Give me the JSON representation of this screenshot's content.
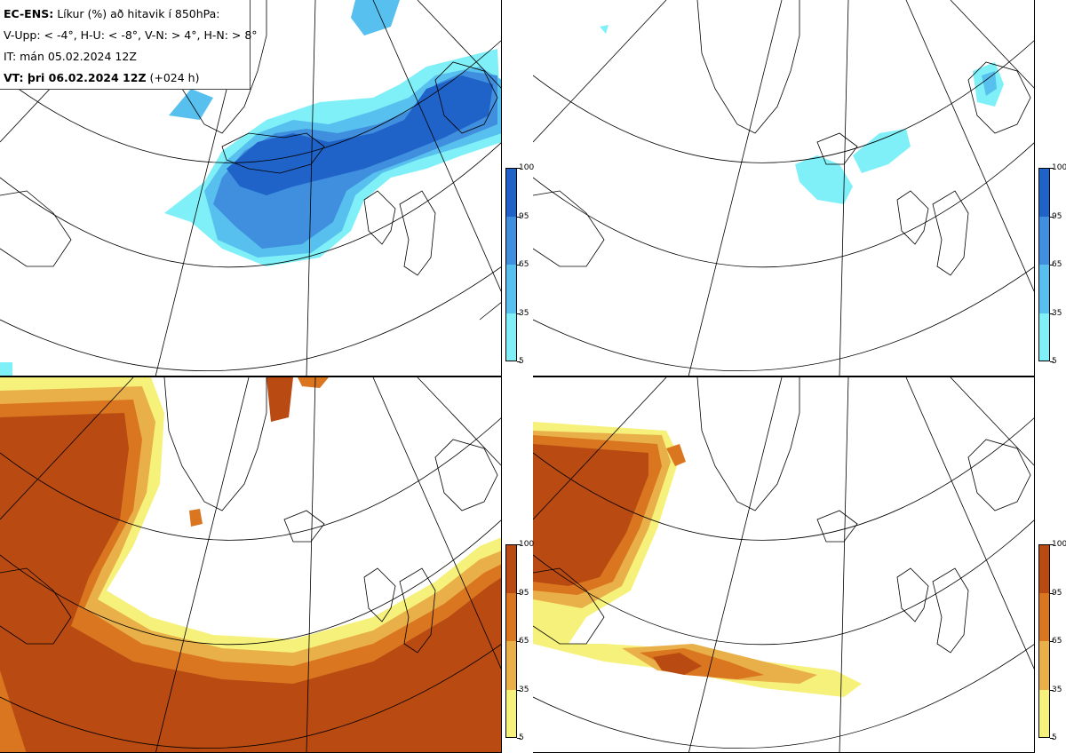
{
  "header": {
    "line1_bold": "EC-ENS:",
    "line1_rest": "Líkur (%) að hitavik í 850hPa:",
    "line2": "V-Upp: < -4°, H-U: < -8°, V-N: > 4°, H-N: > 8°",
    "line3": "IT: mán 05.02.2024 12Z",
    "line4_bold": "VT: þri 06.02.2024 12Z",
    "line4_rest": "(+024 h)"
  },
  "colorbar": {
    "labels": [
      "100",
      "95",
      "65",
      "35",
      "5"
    ],
    "cold_colors": [
      "#1f63c9",
      "#3f8fde",
      "#57c0ee",
      "#80f0f8",
      "#ffffff"
    ],
    "warm_colors": [
      "#b84a12",
      "#d9761f",
      "#e9b04a",
      "#f6f17a",
      "#ffffff"
    ]
  },
  "panels": [
    {
      "id": "top-left",
      "variable": "cold < -4°"
    },
    {
      "id": "top-right",
      "variable": "cold < -8°"
    },
    {
      "id": "bottom-left",
      "variable": "warm > 4°"
    },
    {
      "id": "bottom-right",
      "variable": "warm > 8°"
    }
  ]
}
